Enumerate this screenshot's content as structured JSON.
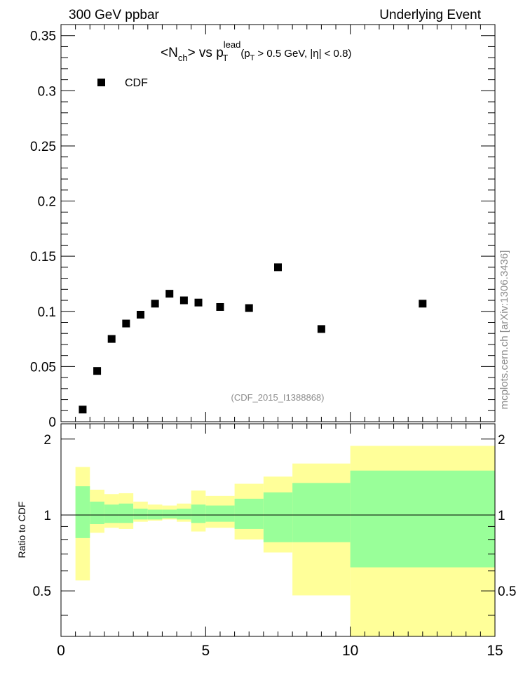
{
  "header": {
    "left": "300 GeV ppbar",
    "right": "Underlying Event"
  },
  "watermark": "mcplots.cern.ch [arXiv:1306.3436]",
  "analysis_id": "(CDF_2015_I1388868)",
  "colors": {
    "band_inner": "#99ff99",
    "band_outer": "#ffff99",
    "marker": "#000000",
    "grey_text": "#8c8c8c"
  },
  "chart_data": [
    {
      "type": "scatter",
      "title_parts": {
        "main": "<N",
        "main_sub": "ch",
        "mid": "> vs p",
        "p_sup": "lead",
        "p_sub": "T",
        "tail1": "(p",
        "tail_sub": "T",
        "tail2": "> 0.5 GeV, |η| < 0.8)"
      },
      "legend": {
        "label": "CDF",
        "position": "top-left"
      },
      "xlim": [
        0,
        15
      ],
      "ylim": [
        0,
        0.36
      ],
      "x_ticks": [
        0,
        5,
        10,
        15
      ],
      "y_ticks": [
        0.05,
        0.1,
        0.15,
        0.2,
        0.25,
        0.3,
        0.35
      ],
      "y_tick_labels": [
        "0.05",
        "0.1",
        "0.15",
        "0.2",
        "0.25",
        "0.3",
        "0.35"
      ],
      "y_zero_label": "0",
      "series": [
        {
          "name": "CDF",
          "x": [
            0.75,
            1.25,
            1.75,
            2.25,
            2.75,
            3.25,
            3.75,
            4.25,
            4.75,
            5.5,
            6.5,
            7.5,
            9.0,
            12.5
          ],
          "y": [
            0.011,
            0.046,
            0.075,
            0.089,
            0.097,
            0.107,
            0.116,
            0.11,
            0.108,
            0.104,
            0.103,
            0.14,
            0.084,
            0.107
          ]
        }
      ]
    },
    {
      "type": "area",
      "ylabel": "Ratio to CDF",
      "xlim": [
        0,
        15
      ],
      "ylim": [
        0.33,
        2.3
      ],
      "x_ticks": [
        0,
        5,
        10,
        15
      ],
      "x_tick_labels": [
        "0",
        "5",
        "10",
        "15"
      ],
      "y_ticks": [
        0.5,
        1,
        2
      ],
      "y_tick_labels": [
        "0.5",
        "1",
        "2"
      ],
      "reference_line": 1,
      "bins": [
        {
          "x0": 0.5,
          "x1": 1.0,
          "inner": [
            0.81,
            1.3
          ],
          "outer": [
            0.55,
            1.55
          ]
        },
        {
          "x0": 1.0,
          "x1": 1.5,
          "inner": [
            0.92,
            1.13
          ],
          "outer": [
            0.85,
            1.26
          ]
        },
        {
          "x0": 1.5,
          "x1": 2.0,
          "inner": [
            0.93,
            1.1
          ],
          "outer": [
            0.89,
            1.21
          ]
        },
        {
          "x0": 2.0,
          "x1": 2.5,
          "inner": [
            0.93,
            1.11
          ],
          "outer": [
            0.88,
            1.22
          ]
        },
        {
          "x0": 2.5,
          "x1": 3.0,
          "inner": [
            0.96,
            1.06
          ],
          "outer": [
            0.94,
            1.13
          ]
        },
        {
          "x0": 3.0,
          "x1": 3.5,
          "inner": [
            0.96,
            1.05
          ],
          "outer": [
            0.95,
            1.1
          ]
        },
        {
          "x0": 3.5,
          "x1": 4.0,
          "inner": [
            0.97,
            1.05
          ],
          "outer": [
            0.96,
            1.09
          ]
        },
        {
          "x0": 4.0,
          "x1": 4.5,
          "inner": [
            0.96,
            1.06
          ],
          "outer": [
            0.94,
            1.11
          ]
        },
        {
          "x0": 4.5,
          "x1": 5.0,
          "inner": [
            0.93,
            1.1
          ],
          "outer": [
            0.86,
            1.25
          ]
        },
        {
          "x0": 5.0,
          "x1": 6.0,
          "inner": [
            0.94,
            1.09
          ],
          "outer": [
            0.89,
            1.19
          ]
        },
        {
          "x0": 6.0,
          "x1": 7.0,
          "inner": [
            0.88,
            1.16
          ],
          "outer": [
            0.8,
            1.33
          ]
        },
        {
          "x0": 7.0,
          "x1": 8.0,
          "inner": [
            0.78,
            1.23
          ],
          "outer": [
            0.71,
            1.42
          ]
        },
        {
          "x0": 8.0,
          "x1": 10.0,
          "inner": [
            0.78,
            1.34
          ],
          "outer": [
            0.48,
            1.6
          ]
        },
        {
          "x0": 10.0,
          "x1": 15.0,
          "inner": [
            0.62,
            1.5
          ],
          "outer": [
            0.33,
            1.88
          ]
        }
      ]
    }
  ]
}
